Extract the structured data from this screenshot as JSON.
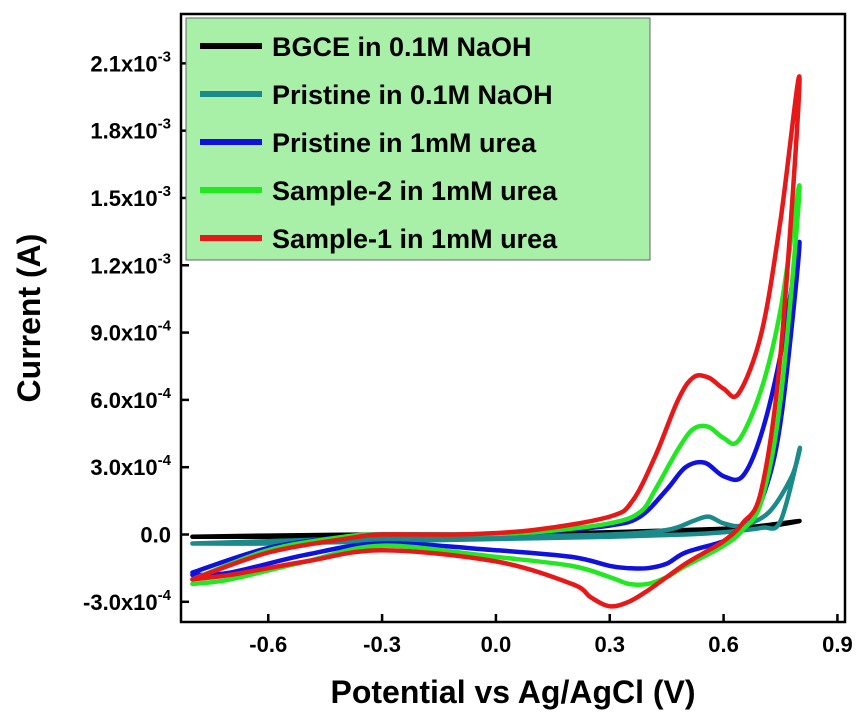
{
  "chart_data": {
    "type": "line",
    "title": "",
    "xlabel": "Potential vs Ag/AgCl (V)",
    "ylabel": "Current (A)",
    "xlim": [
      -0.83,
      0.92
    ],
    "ylim": [
      -0.00039,
      0.00232
    ],
    "x_ticks": [
      {
        "value": -0.6,
        "label": "-0.6"
      },
      {
        "value": -0.3,
        "label": "-0.3"
      },
      {
        "value": 0.0,
        "label": "0.0"
      },
      {
        "value": 0.3,
        "label": "0.3"
      },
      {
        "value": 0.6,
        "label": "0.6"
      },
      {
        "value": 0.9,
        "label": "0.9"
      }
    ],
    "y_ticks": [
      {
        "value": -0.0003,
        "mantissa": "-3.0x10",
        "exp": "-4"
      },
      {
        "value": 0.0,
        "mantissa": "0.0",
        "exp": ""
      },
      {
        "value": 0.0003,
        "mantissa": "3.0x10",
        "exp": "-4"
      },
      {
        "value": 0.0006,
        "mantissa": "6.0x10",
        "exp": "-4"
      },
      {
        "value": 0.0009,
        "mantissa": "9.0x10",
        "exp": "-4"
      },
      {
        "value": 0.0012,
        "mantissa": "1.2x10",
        "exp": "-3"
      },
      {
        "value": 0.0015,
        "mantissa": "1.5x10",
        "exp": "-3"
      },
      {
        "value": 0.0018,
        "mantissa": "1.8x10",
        "exp": "-3"
      },
      {
        "value": 0.0021,
        "mantissa": "2.1x10",
        "exp": "-3"
      }
    ],
    "grid": false,
    "legend_position": "top-left",
    "legend_background": "#a8f0a8",
    "series": [
      {
        "name": "BGCE in 0.1M NaOH",
        "color": "#000000",
        "x": [
          -0.8,
          -0.6,
          -0.3,
          0.0,
          0.3,
          0.5,
          0.65,
          0.8,
          0.65,
          0.5,
          0.3,
          0.0,
          -0.3,
          -0.6,
          -0.8
        ],
        "y": [
          -1e-05,
          -5e-06,
          0.0,
          0.0,
          1e-05,
          2e-05,
          3e-05,
          6e-05,
          2e-05,
          1e-05,
          0.0,
          -5e-06,
          -1e-05,
          -1e-05,
          -1e-05
        ]
      },
      {
        "name": "Pristine in 0.1M NaOH",
        "color": "#1a8a8a",
        "x": [
          -0.8,
          -0.6,
          -0.3,
          0.0,
          0.3,
          0.45,
          0.52,
          0.56,
          0.6,
          0.65,
          0.72,
          0.78,
          0.8,
          0.75,
          0.7,
          0.6,
          0.5,
          0.3,
          0.0,
          -0.3,
          -0.6,
          -0.8
        ],
        "y": [
          -4e-05,
          -3e-05,
          -1.5e-05,
          -1e-05,
          0.0,
          2e-05,
          6e-05,
          8e-05,
          5e-05,
          4e-05,
          0.0001,
          0.00026,
          0.00038,
          6e-05,
          3e-05,
          1e-05,
          0.0,
          -1e-05,
          -2e-05,
          -3e-05,
          -4e-05,
          -4e-05
        ]
      },
      {
        "name": "Pristine in 1mM urea",
        "color": "#1010e0",
        "x": [
          -0.8,
          -0.6,
          -0.4,
          -0.3,
          -0.1,
          0.1,
          0.3,
          0.38,
          0.45,
          0.5,
          0.55,
          0.6,
          0.65,
          0.7,
          0.75,
          0.8,
          0.75,
          0.7,
          0.65,
          0.6,
          0.5,
          0.45,
          0.4,
          0.35,
          0.3,
          0.2,
          0.0,
          -0.3,
          -0.5,
          -0.7,
          -0.8
        ],
        "y": [
          -0.00017,
          -6e-05,
          -1e-05,
          0.0,
          0.0,
          1e-05,
          4e-05,
          8e-05,
          0.0002,
          0.0003,
          0.00032,
          0.00026,
          0.00026,
          0.00045,
          0.0008,
          0.0013,
          0.0005,
          0.00015,
          2e-05,
          -3e-05,
          -8e-05,
          -0.00013,
          -0.00015,
          -0.00015,
          -0.00014,
          -0.0001,
          -7e-05,
          -4e-05,
          -9e-05,
          -0.00017,
          -0.00018
        ]
      },
      {
        "name": "Sample-2 in 1mM urea",
        "color": "#22e822",
        "x": [
          -0.8,
          -0.6,
          -0.4,
          -0.3,
          -0.1,
          0.1,
          0.3,
          0.38,
          0.42,
          0.48,
          0.52,
          0.56,
          0.6,
          0.64,
          0.7,
          0.75,
          0.8,
          0.75,
          0.7,
          0.65,
          0.6,
          0.5,
          0.45,
          0.4,
          0.35,
          0.3,
          0.2,
          0.0,
          -0.3,
          -0.5,
          -0.7,
          -0.8
        ],
        "y": [
          -0.0002,
          -7e-05,
          -1e-05,
          0.0,
          0.0,
          1e-05,
          5e-05,
          0.0001,
          0.0002,
          0.00038,
          0.00047,
          0.00048,
          0.00043,
          0.00042,
          0.00065,
          0.001,
          0.00155,
          0.0006,
          0.00015,
          2e-05,
          -5e-05,
          -0.00014,
          -0.00019,
          -0.00022,
          -0.00022,
          -0.00019,
          -0.00014,
          -0.0001,
          -5e-05,
          -0.00012,
          -0.0002,
          -0.00022
        ]
      },
      {
        "name": "Sample-1 in 1mM urea",
        "color": "#e81818",
        "x": [
          -0.8,
          -0.6,
          -0.4,
          -0.3,
          -0.1,
          0.1,
          0.3,
          0.36,
          0.42,
          0.48,
          0.52,
          0.56,
          0.6,
          0.64,
          0.7,
          0.75,
          0.8,
          0.75,
          0.7,
          0.65,
          0.6,
          0.55,
          0.5,
          0.45,
          0.4,
          0.35,
          0.3,
          0.25,
          0.2,
          0.0,
          -0.3,
          -0.5,
          -0.7,
          -0.8
        ],
        "y": [
          -0.0002,
          -8e-05,
          -2e-05,
          0.0,
          0.0,
          2e-05,
          8e-05,
          0.00015,
          0.00035,
          0.0006,
          0.0007,
          0.0007,
          0.00065,
          0.00063,
          0.0009,
          0.0014,
          0.00203,
          0.0008,
          0.0002,
          5e-05,
          -3e-05,
          -8e-05,
          -0.00013,
          -0.00019,
          -0.00025,
          -0.0003,
          -0.00032,
          -0.00028,
          -0.00022,
          -0.00012,
          -7e-05,
          -0.00012,
          -0.00018,
          -0.0002
        ]
      }
    ]
  }
}
